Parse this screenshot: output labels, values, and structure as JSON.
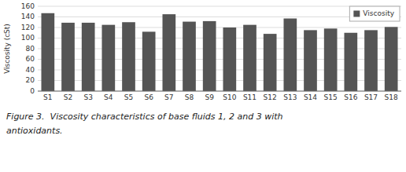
{
  "chart_data": {
    "type": "bar",
    "categories": [
      "S1",
      "S2",
      "S3",
      "S4",
      "S5",
      "S6",
      "S7",
      "S8",
      "S9",
      "S10",
      "S11",
      "S12",
      "S13",
      "S14",
      "S15",
      "S16",
      "S17",
      "S18"
    ],
    "series": [
      {
        "name": "Viscosity",
        "color": "#555555",
        "values": [
          147,
          129,
          129,
          125,
          130,
          112,
          145,
          131,
          132,
          120,
          125,
          108,
          137,
          115,
          118,
          110,
          115,
          121
        ]
      }
    ],
    "ylabel": "Viscosity (cSt)",
    "ylim": [
      0,
      160
    ],
    "yticks": [
      0,
      20,
      40,
      60,
      80,
      100,
      120,
      140,
      160
    ],
    "grid": true,
    "legend": "upper-right",
    "annotations": [
      "Figure 3.  Viscosity characteristics of base fluids 1, 2 and 3 with",
      "antioxidants."
    ]
  }
}
